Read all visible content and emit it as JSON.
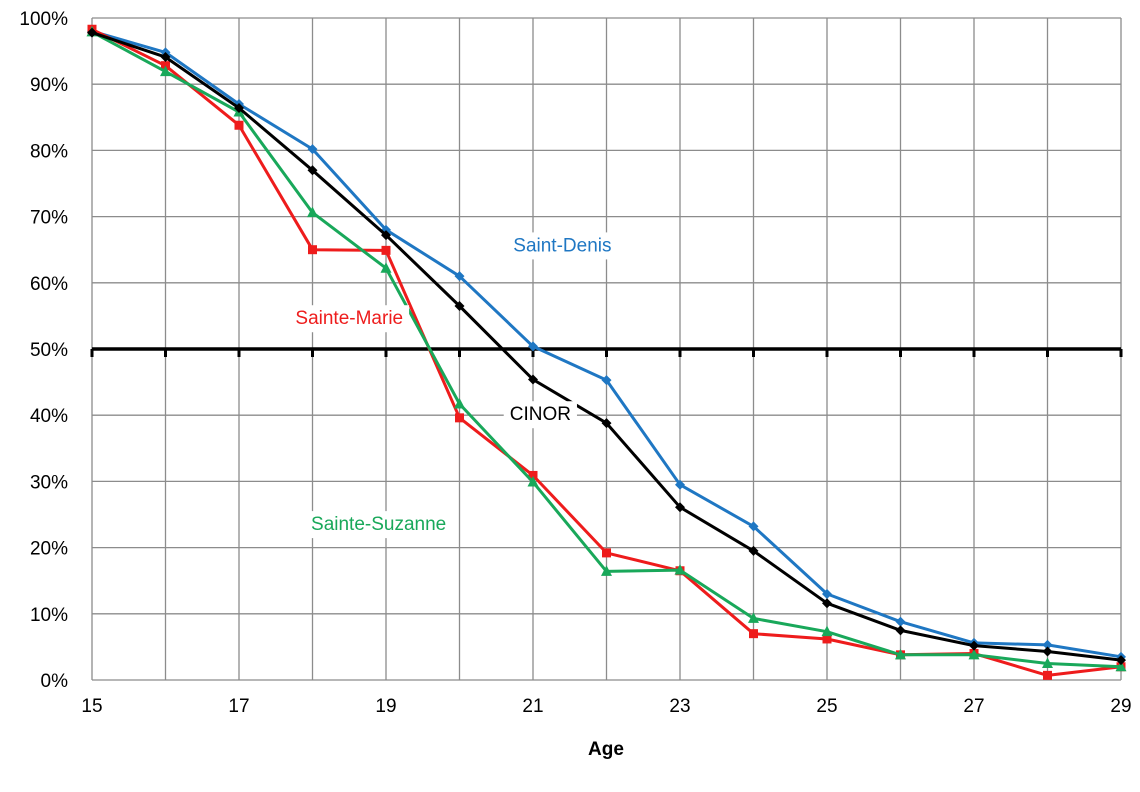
{
  "chart_data": {
    "type": "line",
    "title": "",
    "xlabel": "Age",
    "ylabel": "",
    "xlim": [
      15,
      29
    ],
    "ylim": [
      0,
      100
    ],
    "x": [
      15,
      16,
      17,
      18,
      19,
      20,
      21,
      22,
      23,
      24,
      25,
      26,
      27,
      28,
      29
    ],
    "x_ticks": [
      15,
      17,
      19,
      21,
      23,
      25,
      27,
      29
    ],
    "x_tick_labels": [
      "15",
      "17",
      "19",
      "21",
      "23",
      "25",
      "27",
      "29"
    ],
    "y_ticks": [
      0,
      10,
      20,
      30,
      40,
      50,
      60,
      70,
      80,
      90,
      100
    ],
    "y_tick_labels": [
      "0%",
      "10%",
      "20%",
      "30%",
      "40%",
      "50%",
      "60%",
      "70%",
      "80%",
      "90%",
      "100%"
    ],
    "grid": true,
    "legend": "none",
    "reference_line": {
      "y": 50,
      "color": "#000000"
    },
    "series": [
      {
        "name": "Saint-Denis",
        "color": "#1F77C3",
        "marker": "diamond",
        "values": [
          98.0,
          94.8,
          87.0,
          80.2,
          68.0,
          61.0,
          50.4,
          45.3,
          29.5,
          23.2,
          13.0,
          8.8,
          5.6,
          5.3,
          3.5
        ],
        "label_at": [
          21.4,
          65.8
        ]
      },
      {
        "name": "Sainte-Marie",
        "color": "#EE1C1C",
        "marker": "square",
        "values": [
          98.3,
          92.8,
          83.8,
          65.0,
          64.9,
          39.6,
          30.9,
          19.2,
          16.5,
          7.0,
          6.2,
          3.8,
          4.0,
          0.7,
          2.0
        ],
        "label_at": [
          18.5,
          54.8
        ]
      },
      {
        "name": "Sainte-Suzanne",
        "color": "#19A85A",
        "marker": "triangle",
        "values": [
          97.9,
          91.9,
          85.8,
          70.6,
          62.2,
          41.7,
          29.9,
          16.4,
          16.6,
          9.3,
          7.3,
          3.8,
          3.8,
          2.5,
          2.0
        ],
        "label_at": [
          18.9,
          23.7
        ]
      },
      {
        "name": "CINOR",
        "color": "#000000",
        "marker": "diamond",
        "values": [
          97.8,
          94.1,
          86.4,
          77.0,
          67.2,
          56.5,
          45.4,
          38.8,
          26.1,
          19.5,
          11.6,
          7.5,
          5.2,
          4.3,
          3.0
        ],
        "label_at": [
          21.1,
          40.3
        ]
      }
    ]
  }
}
